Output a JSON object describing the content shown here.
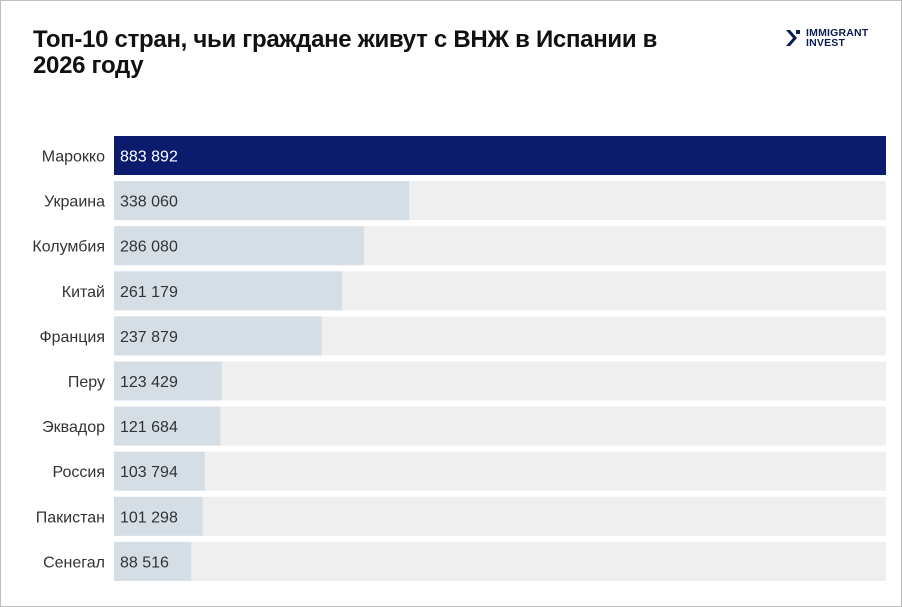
{
  "chart_data": {
    "type": "bar",
    "orientation": "horizontal",
    "title": "Топ-10 стран, чьи граждане живут с ВНЖ в Испании в 2026 году",
    "categories": [
      "Марокко",
      "Украина",
      "Колумбия",
      "Китай",
      "Франция",
      "Перу",
      "Эквадор",
      "Россия",
      "Пакистан",
      "Сенегал"
    ],
    "values": [
      883892,
      338060,
      286080,
      261179,
      237879,
      123429,
      121684,
      103794,
      101298,
      88516
    ],
    "value_labels": [
      "883 892",
      "338 060",
      "286 080",
      "261 179",
      "237 879",
      "123 429",
      "121 684",
      "103 794",
      "101 298",
      "88 516"
    ],
    "xlim": [
      0,
      883892
    ],
    "grid": false,
    "colors": {
      "highlight": "#0b1c6e",
      "bar": "#d5dee5",
      "track": "#efefef"
    }
  },
  "logo": {
    "line1": "IMMIGRANT",
    "line2": "INVEST",
    "icon": "chevron-mark-icon"
  }
}
